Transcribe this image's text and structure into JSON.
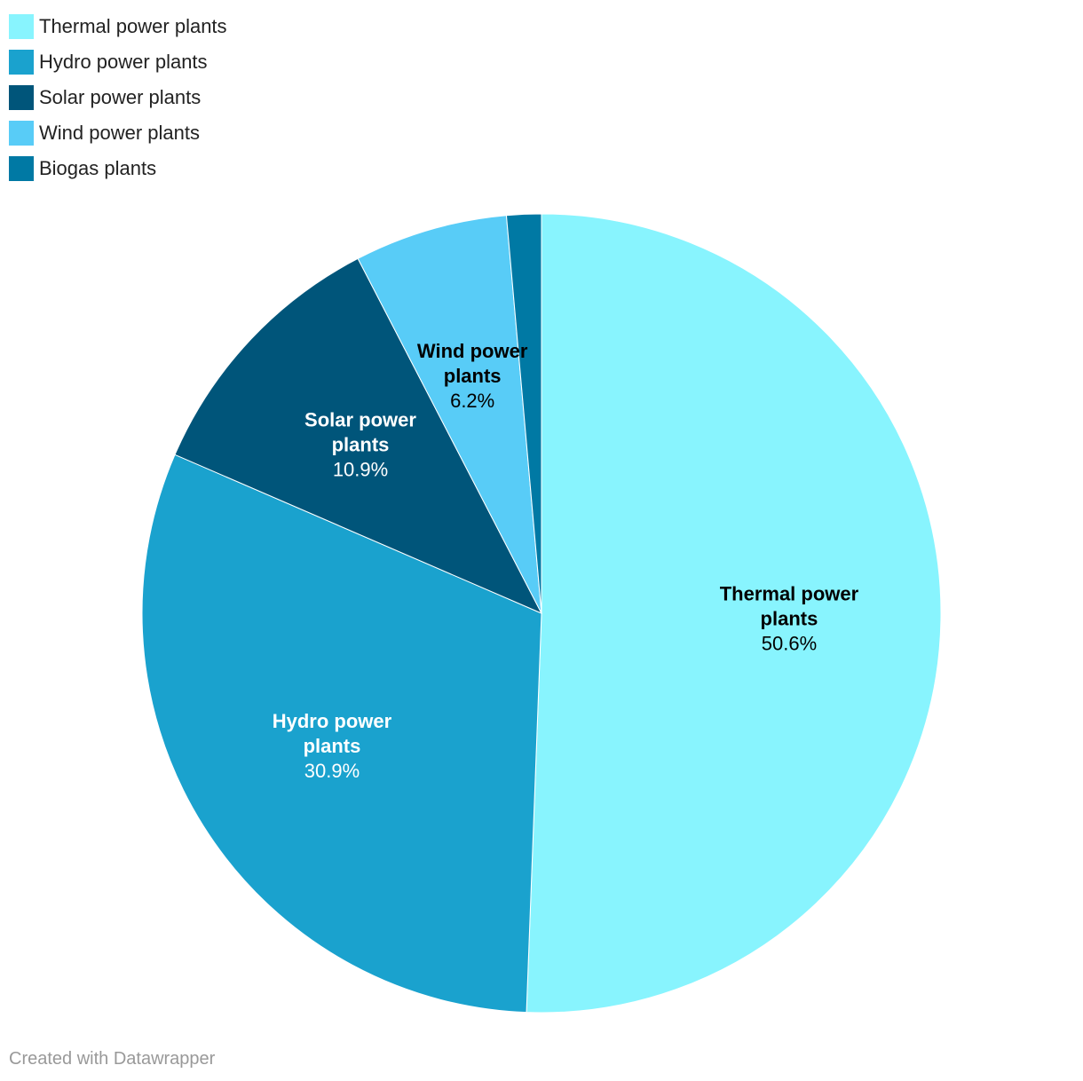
{
  "chart_data": {
    "type": "pie",
    "title": "",
    "slices": [
      {
        "label": "Thermal power plants",
        "value": 50.6,
        "value_label": "50.6%",
        "color": "#88f4fe",
        "label_lines": [
          "Thermal power",
          "plants"
        ],
        "label_color": "#000000"
      },
      {
        "label": "Hydro power plants",
        "value": 30.9,
        "value_label": "30.9%",
        "color": "#1aa2ce",
        "label_lines": [
          "Hydro power",
          "plants"
        ],
        "label_color": "#ffffff"
      },
      {
        "label": "Solar power plants",
        "value": 10.9,
        "value_label": "10.9%",
        "color": "#00557a",
        "label_lines": [
          "Solar power",
          "plants"
        ],
        "label_color": "#ffffff"
      },
      {
        "label": "Wind power plants",
        "value": 6.2,
        "value_label": "6.2%",
        "color": "#58ccf7",
        "label_lines": [
          "Wind power",
          "plants"
        ],
        "label_color": "#000000"
      },
      {
        "label": "Biogas plants",
        "value": 1.4,
        "value_label": "",
        "color": "#0079a4",
        "label_lines": [],
        "label_color": "#ffffff"
      }
    ],
    "legend_position": "top-left"
  },
  "footer": {
    "credit": "Created with Datawrapper"
  }
}
